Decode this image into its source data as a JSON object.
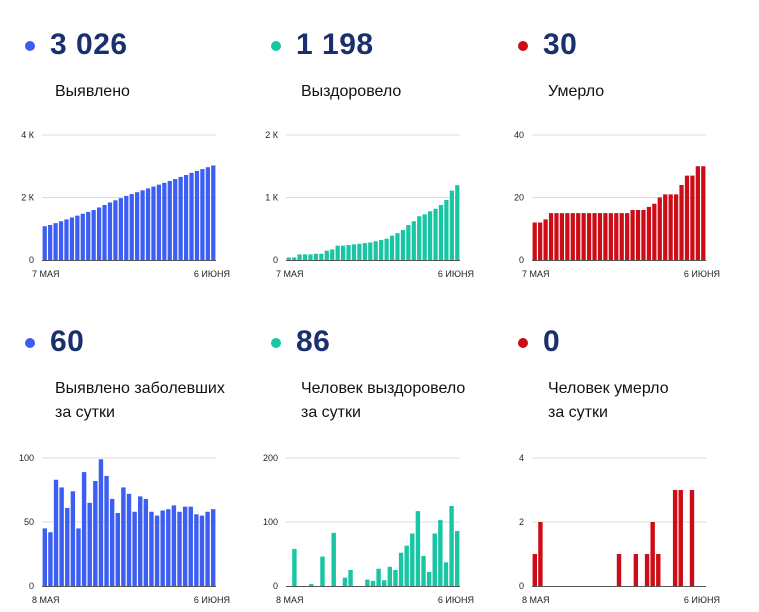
{
  "panels": [
    {
      "value": "3 026",
      "label_lines": [
        "Выявлено"
      ],
      "color": "#3d5ef2",
      "chart_data": {
        "type": "bar",
        "x_start_label": "7 МАЯ",
        "x_end_label": "6 ИЮНЯ",
        "ylim": [
          0,
          4000
        ],
        "yticks": [
          {
            "value": 0,
            "label": "0"
          },
          {
            "value": 2000,
            "label": "2 К"
          },
          {
            "value": 4000,
            "label": "4 К"
          }
        ],
        "values": [
          1080,
          1120,
          1180,
          1240,
          1300,
          1360,
          1420,
          1480,
          1540,
          1600,
          1680,
          1760,
          1840,
          1910,
          1980,
          2050,
          2110,
          2170,
          2230,
          2290,
          2350,
          2410,
          2470,
          2530,
          2590,
          2660,
          2720,
          2790,
          2850,
          2910,
          2970,
          3026
        ]
      }
    },
    {
      "value": "1 198",
      "label_lines": [
        "Выздоровело"
      ],
      "color": "#18c6a4",
      "chart_data": {
        "type": "bar",
        "x_start_label": "7 МАЯ",
        "x_end_label": "6 ИЮНЯ",
        "ylim": [
          0,
          2000
        ],
        "yticks": [
          {
            "value": 0,
            "label": "0"
          },
          {
            "value": 1000,
            "label": "1 К"
          },
          {
            "value": 2000,
            "label": "2 К"
          }
        ],
        "values": [
          40,
          40,
          90,
          90,
          90,
          100,
          100,
          150,
          170,
          230,
          230,
          240,
          250,
          260,
          270,
          280,
          300,
          320,
          340,
          390,
          430,
          480,
          560,
          620,
          700,
          730,
          780,
          820,
          880,
          960,
          1110,
          1198
        ]
      }
    },
    {
      "value": "30",
      "label_lines": [
        "Умерло"
      ],
      "color": "#cc0c16",
      "chart_data": {
        "type": "bar",
        "x_start_label": "7 МАЯ",
        "x_end_label": "6 ИЮНЯ",
        "ylim": [
          0,
          40
        ],
        "yticks": [
          {
            "value": 0,
            "label": "0"
          },
          {
            "value": 20,
            "label": "20"
          },
          {
            "value": 40,
            "label": "40"
          }
        ],
        "values": [
          12,
          12,
          13,
          15,
          15,
          15,
          15,
          15,
          15,
          15,
          15,
          15,
          15,
          15,
          15,
          15,
          15,
          15,
          16,
          16,
          16,
          17,
          18,
          20,
          21,
          21,
          21,
          24,
          27,
          27,
          30,
          30
        ]
      }
    },
    {
      "value": "60",
      "label_lines": [
        "Выявлено заболевших",
        "за сутки"
      ],
      "color": "#3d5ef2",
      "chart_data": {
        "type": "bar",
        "x_start_label": "8 МАЯ",
        "x_end_label": "6 ИЮНЯ",
        "ylim": [
          0,
          100
        ],
        "yticks": [
          {
            "value": 0,
            "label": "0"
          },
          {
            "value": 50,
            "label": "50"
          },
          {
            "value": 100,
            "label": "100"
          }
        ],
        "values": [
          45,
          42,
          83,
          77,
          61,
          74,
          45,
          89,
          65,
          82,
          99,
          86,
          68,
          57,
          77,
          72,
          58,
          70,
          68,
          58,
          55,
          59,
          60,
          63,
          58,
          62,
          62,
          56,
          55,
          58,
          60
        ]
      }
    },
    {
      "value": "86",
      "label_lines": [
        "Человек выздоровело",
        "за сутки"
      ],
      "color": "#18c6a4",
      "chart_data": {
        "type": "bar",
        "x_start_label": "8 МАЯ",
        "x_end_label": "6 ИЮНЯ",
        "ylim": [
          0,
          200
        ],
        "yticks": [
          {
            "value": 0,
            "label": "0"
          },
          {
            "value": 100,
            "label": "100"
          },
          {
            "value": 200,
            "label": "200"
          }
        ],
        "values": [
          0,
          58,
          0,
          0,
          3,
          0,
          46,
          0,
          83,
          0,
          13,
          25,
          0,
          0,
          10,
          8,
          27,
          9,
          30,
          25,
          52,
          63,
          82,
          117,
          47,
          22,
          82,
          103,
          37,
          125,
          86
        ]
      }
    },
    {
      "value": "0",
      "label_lines": [
        "Человек умерло",
        "за сутки"
      ],
      "color": "#cc0c16",
      "chart_data": {
        "type": "bar",
        "x_start_label": "8 МАЯ",
        "x_end_label": "6 ИЮНЯ",
        "ylim": [
          0,
          4
        ],
        "yticks": [
          {
            "value": 0,
            "label": "0"
          },
          {
            "value": 2,
            "label": "2"
          },
          {
            "value": 4,
            "label": "4"
          }
        ],
        "values": [
          1,
          2,
          0,
          0,
          0,
          0,
          0,
          0,
          0,
          0,
          0,
          0,
          0,
          0,
          0,
          1,
          0,
          0,
          1,
          0,
          1,
          2,
          1,
          0,
          0,
          3,
          3,
          0,
          3,
          0,
          0
        ]
      }
    }
  ]
}
